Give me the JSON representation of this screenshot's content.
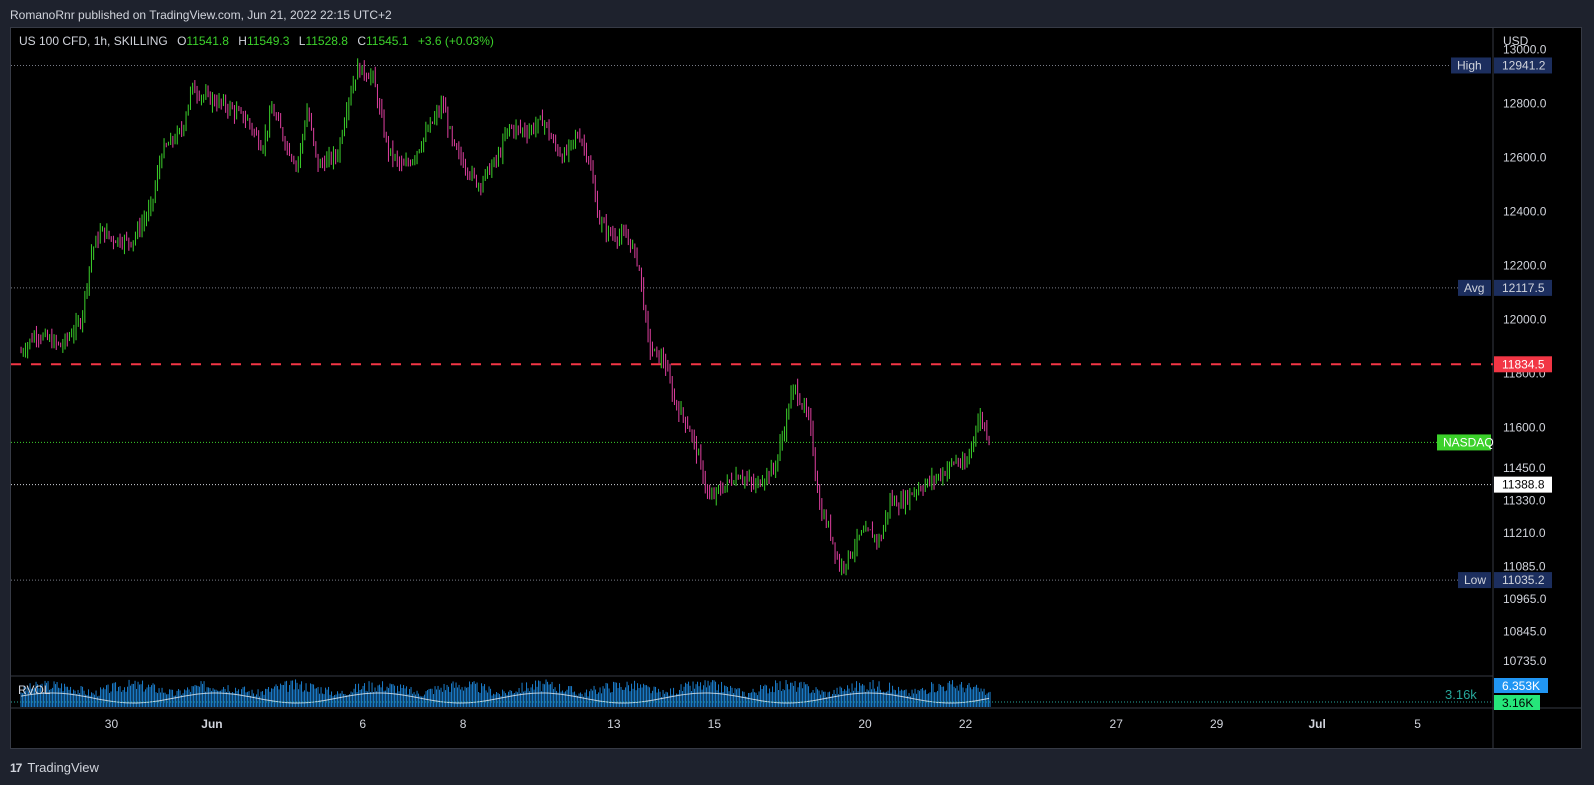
{
  "header": {
    "published": "RomanoRnr published on TradingView.com, Jun 21, 2022 22:15 UTC+2"
  },
  "legend": {
    "symbol": "US 100 CFD, 1h, SKILLING",
    "o_label": "O",
    "o": "11541.8",
    "h_label": "H",
    "h": "11549.3",
    "l_label": "L",
    "l": "11528.8",
    "c_label": "C",
    "c": "11545.1",
    "change": "+3.6 (+0.03%)"
  },
  "footer": {
    "brand": "TradingView",
    "logo": "17"
  },
  "colors": {
    "up": "#3cd12b",
    "down": "#e040a0",
    "dashed": "#f23645",
    "nasdaq": "#3cd12b",
    "label_bg": "#1c2e5e",
    "volume": "#2196f3"
  },
  "chart_data": {
    "type": "candlestick",
    "currency": "USD",
    "y_ticks": [
      13000.0,
      12800.0,
      12600.0,
      12400.0,
      12200.0,
      12000.0,
      11800.0,
      11600.0,
      11450.0,
      11330.0,
      11210.0,
      11085.0,
      10965.0,
      10845.0,
      10735.0
    ],
    "y_tick_labels": [
      "13000.0",
      "12800.0",
      "12600.0",
      "12400.0",
      "12200.0",
      "12000.0",
      "11800.0",
      "11600.0",
      "11450.0",
      "11330.0",
      "11210.0",
      "11085.0",
      "10965.0",
      "10845.0",
      "10735.0"
    ],
    "x_labels": [
      {
        "label": "30",
        "day": 0
      },
      {
        "label": "Jun",
        "day": 2
      },
      {
        "label": "6",
        "day": 5
      },
      {
        "label": "8",
        "day": 7
      },
      {
        "label": "13",
        "day": 10
      },
      {
        "label": "15",
        "day": 12
      },
      {
        "label": "20",
        "day": 15
      },
      {
        "label": "22",
        "day": 17
      },
      {
        "label": "27",
        "day": 20
      },
      {
        "label": "29",
        "day": 22
      },
      {
        "label": "Jul",
        "day": 24
      },
      {
        "label": "5",
        "day": 26
      }
    ],
    "levels": [
      {
        "name": "High",
        "value": 12941.2,
        "label": "12941.2",
        "style": "dotted"
      },
      {
        "name": "Avg",
        "value": 12117.5,
        "label": "12117.5",
        "style": "dotted"
      },
      {
        "name": "",
        "value": 11834.5,
        "label": "11834.5",
        "style": "dashed"
      },
      {
        "name": "NASDAQ",
        "value": 11545.1,
        "label": "",
        "style": "dotted-green"
      },
      {
        "name": "",
        "value": 11388.8,
        "label": "11388.8",
        "style": "dotted-white"
      },
      {
        "name": "Low",
        "value": 11035.2,
        "label": "11035.2",
        "style": "dotted"
      }
    ],
    "price_path": [
      [
        -1.8,
        11880
      ],
      [
        -1.5,
        11950
      ],
      [
        -1.0,
        11900
      ],
      [
        -0.6,
        12000
      ],
      [
        -0.4,
        12250
      ],
      [
        -0.2,
        12330
      ],
      [
        0.0,
        12300
      ],
      [
        0.4,
        12290
      ],
      [
        0.8,
        12420
      ],
      [
        1.0,
        12620
      ],
      [
        1.4,
        12700
      ],
      [
        1.6,
        12860
      ],
      [
        1.8,
        12830
      ],
      [
        2.3,
        12790
      ],
      [
        2.7,
        12740
      ],
      [
        3.0,
        12640
      ],
      [
        3.2,
        12780
      ],
      [
        3.5,
        12640
      ],
      [
        3.7,
        12570
      ],
      [
        3.9,
        12780
      ],
      [
        4.1,
        12570
      ],
      [
        4.5,
        12610
      ],
      [
        4.7,
        12810
      ],
      [
        4.9,
        12930
      ],
      [
        5.2,
        12900
      ],
      [
        5.5,
        12630
      ],
      [
        5.8,
        12560
      ],
      [
        6.0,
        12600
      ],
      [
        6.3,
        12700
      ],
      [
        6.6,
        12800
      ],
      [
        6.8,
        12640
      ],
      [
        7.3,
        12500
      ],
      [
        7.7,
        12600
      ],
      [
        7.9,
        12710
      ],
      [
        8.3,
        12700
      ],
      [
        8.6,
        12740
      ],
      [
        8.8,
        12650
      ],
      [
        9.0,
        12600
      ],
      [
        9.3,
        12690
      ],
      [
        9.5,
        12600
      ],
      [
        9.7,
        12370
      ],
      [
        9.9,
        12320
      ],
      [
        10.3,
        12300
      ],
      [
        10.5,
        12200
      ],
      [
        10.7,
        11900
      ],
      [
        10.9,
        11860
      ],
      [
        11.0,
        11850
      ],
      [
        11.2,
        11700
      ],
      [
        11.5,
        11600
      ],
      [
        11.7,
        11480
      ],
      [
        11.9,
        11330
      ],
      [
        12.0,
        11350
      ],
      [
        12.3,
        11400
      ],
      [
        12.5,
        11430
      ],
      [
        12.8,
        11380
      ],
      [
        13.0,
        11420
      ],
      [
        13.2,
        11450
      ],
      [
        13.4,
        11600
      ],
      [
        13.5,
        11700
      ],
      [
        13.6,
        11750
      ],
      [
        13.9,
        11620
      ],
      [
        14.1,
        11300
      ],
      [
        14.3,
        11220
      ],
      [
        14.5,
        11080
      ],
      [
        14.7,
        11130
      ],
      [
        14.9,
        11200
      ],
      [
        15.1,
        11210
      ],
      [
        15.3,
        11180
      ],
      [
        15.5,
        11330
      ],
      [
        15.7,
        11320
      ],
      [
        16.0,
        11370
      ],
      [
        16.3,
        11400
      ],
      [
        16.6,
        11440
      ],
      [
        16.8,
        11480
      ],
      [
        17.0,
        11450
      ],
      [
        17.2,
        11600
      ],
      [
        17.3,
        11640
      ],
      [
        17.5,
        11545
      ]
    ],
    "x_range": [
      -2,
      27.5
    ],
    "y_range": [
      10680,
      13080
    ],
    "volume": {
      "name": "RVOL",
      "value_label": "6.353K",
      "avg_label": "3.16K",
      "avg_text": "3.16k"
    }
  }
}
